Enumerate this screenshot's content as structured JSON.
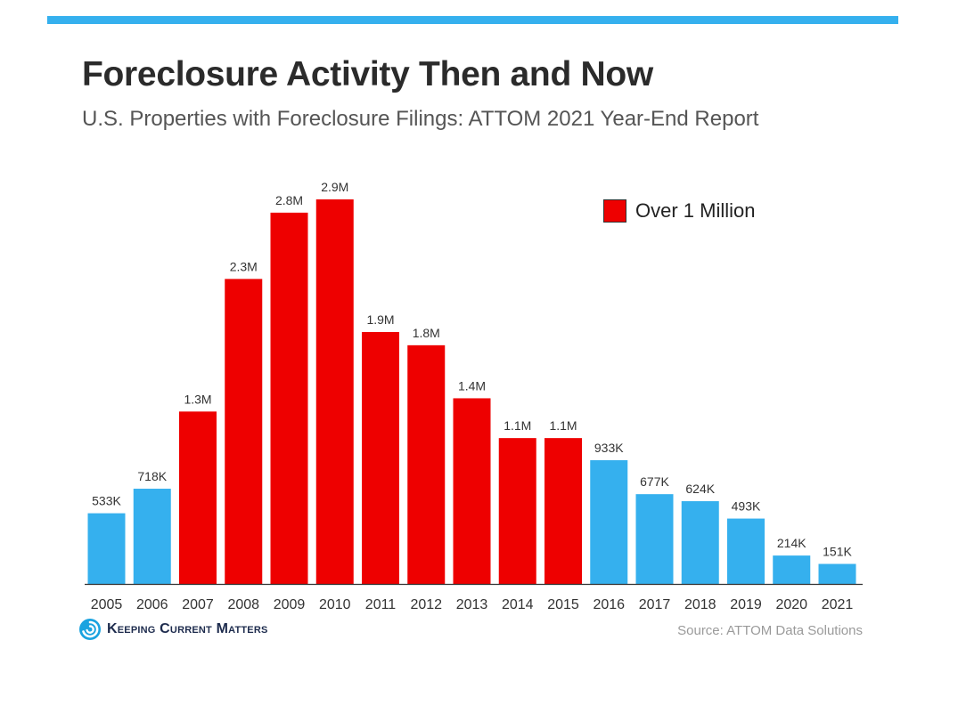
{
  "header": {
    "title": "Foreclosure Activity Then and Now",
    "subtitle": "U.S. Properties with Foreclosure Filings: ATTOM 2021 Year-End Report"
  },
  "legend": {
    "label": "Over 1 Million",
    "color": "#ee0000"
  },
  "footer": {
    "brand": "Keeping Current Matters",
    "brand_icon": "spiral-logo-icon",
    "source": "Source: ATTOM Data Solutions"
  },
  "colors": {
    "accent_bar": "#35b0ee",
    "under_million": "#35b0ee",
    "over_million": "#ee0000",
    "brand_blue": "#1aa3e0"
  },
  "chart_data": {
    "type": "bar",
    "title": "Foreclosure Activity Then and Now",
    "subtitle": "U.S. Properties with Foreclosure Filings: ATTOM 2021 Year-End Report",
    "categories": [
      "2005",
      "2006",
      "2007",
      "2008",
      "2009",
      "2010",
      "2011",
      "2012",
      "2013",
      "2014",
      "2015",
      "2016",
      "2017",
      "2018",
      "2019",
      "2020",
      "2021"
    ],
    "values": [
      533000,
      718000,
      1300000,
      2300000,
      2800000,
      2900000,
      1900000,
      1800000,
      1400000,
      1100000,
      1100000,
      933000,
      677000,
      624000,
      493000,
      214000,
      151000
    ],
    "data_labels": [
      "533K",
      "718K",
      "1.3M",
      "2.3M",
      "2.8M",
      "2.9M",
      "1.9M",
      "1.8M",
      "1.4M",
      "1.1M",
      "1.1M",
      "933K",
      "677K",
      "624K",
      "493K",
      "214K",
      "151K"
    ],
    "xlabel": "",
    "ylabel": "",
    "ylim": [
      0,
      2900000
    ],
    "grid": false,
    "legend_position": "top-right"
  }
}
